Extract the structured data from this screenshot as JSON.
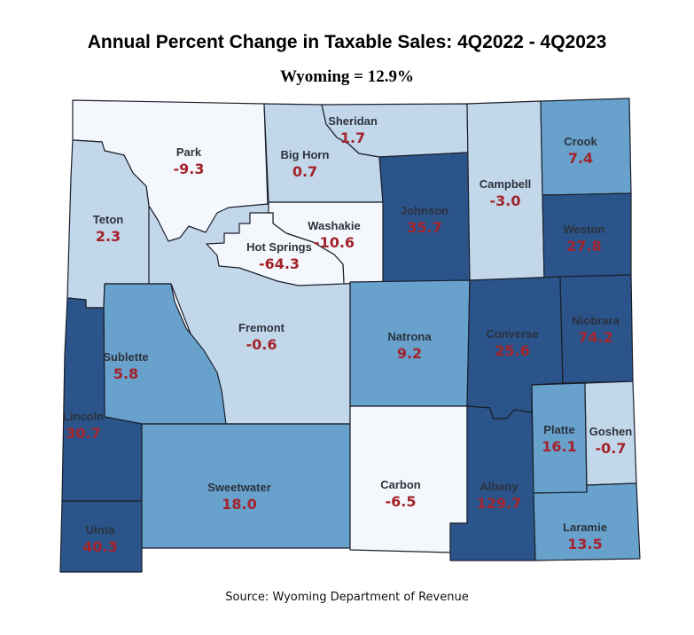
{
  "title": "Annual Percent Change in Taxable Sales: 4Q2022 - 4Q2023",
  "subtitle": "Wyoming = 12.9%",
  "source": "Source: Wyoming Department of Revenue",
  "colors": {
    "class_white": "#f4f8fc",
    "class_light": "#c2d8ea",
    "class_medium": "#67a1cc",
    "class_dark": "#2b548b",
    "border": "#1a1f2a",
    "label_name": "#2c323d",
    "label_value": "#a3232b"
  },
  "counties": [
    {
      "name": "Fremont",
      "value": "-0.6",
      "class": "light"
    },
    {
      "name": "Park",
      "value": "-9.3",
      "class": "white"
    },
    {
      "name": "Teton",
      "value": "2.3",
      "class": "light"
    },
    {
      "name": "Big Horn",
      "value": "0.7",
      "class": "light"
    },
    {
      "name": "Sheridan",
      "value": "1.7",
      "class": "light"
    },
    {
      "name": "Johnson",
      "value": "35.7",
      "class": "dark"
    },
    {
      "name": "Campbell",
      "value": "-3.0",
      "class": "light"
    },
    {
      "name": "Crook",
      "value": "7.4",
      "class": "medium"
    },
    {
      "name": "Weston",
      "value": "27.8",
      "class": "dark"
    },
    {
      "name": "Washakie",
      "value": "-10.6",
      "class": "white"
    },
    {
      "name": "Hot Springs",
      "value": "-64.3",
      "class": "white"
    },
    {
      "name": "Natrona",
      "value": "9.2",
      "class": "medium"
    },
    {
      "name": "Converse",
      "value": "25.6",
      "class": "dark"
    },
    {
      "name": "Niobrara",
      "value": "74.2",
      "class": "dark"
    },
    {
      "name": "Sublette",
      "value": "5.8",
      "class": "medium"
    },
    {
      "name": "Lincoln",
      "value": "30.7",
      "class": "dark"
    },
    {
      "name": "Uinta",
      "value": "40.3",
      "class": "dark"
    },
    {
      "name": "Sweetwater",
      "value": "18.0",
      "class": "medium"
    },
    {
      "name": "Carbon",
      "value": "-6.5",
      "class": "white"
    },
    {
      "name": "Albany",
      "value": "129.7",
      "class": "dark"
    },
    {
      "name": "Platte",
      "value": "16.1",
      "class": "medium"
    },
    {
      "name": "Goshen",
      "value": "-0.7",
      "class": "light"
    },
    {
      "name": "Laramie",
      "value": "13.5",
      "class": "medium"
    }
  ]
}
